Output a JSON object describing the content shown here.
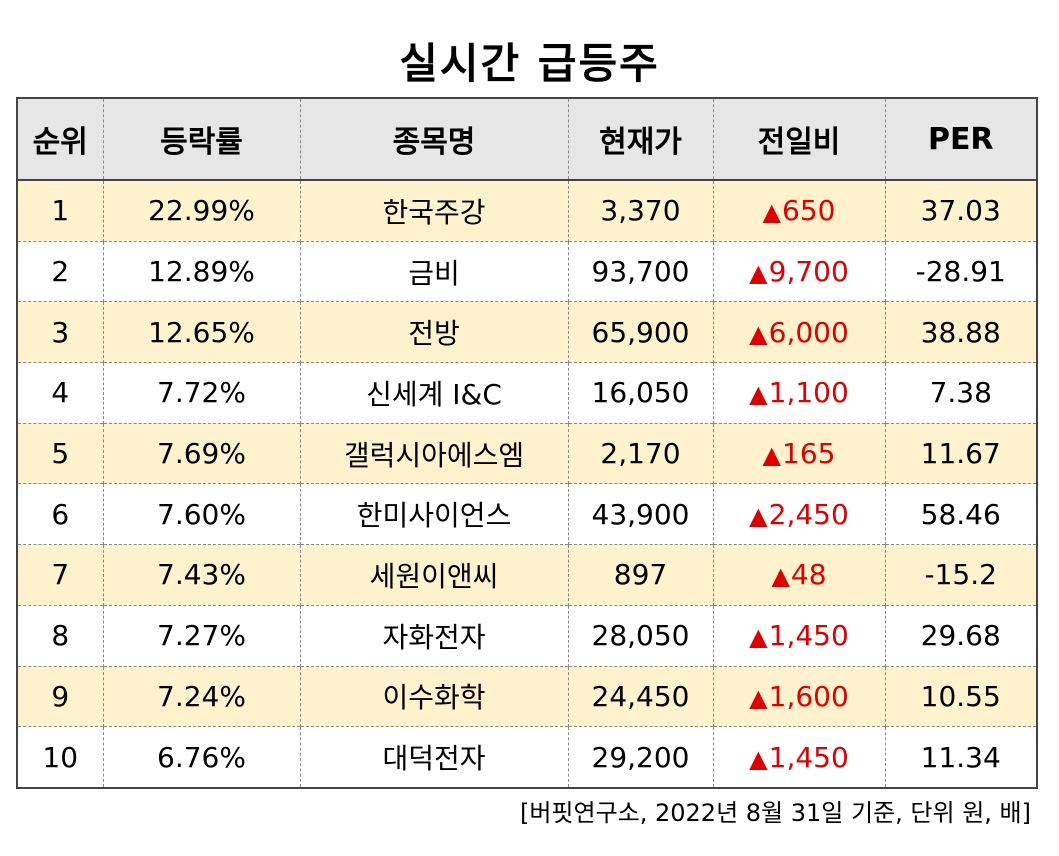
{
  "title": "실시간 급등주",
  "columns": [
    "순위",
    "등락률",
    "종목명",
    "현재가",
    "전일비",
    "PER"
  ],
  "rows": [
    {
      "rank": "1",
      "rate": "22.99%",
      "name": "한국주강",
      "price": "3,370",
      "change": "650",
      "per": "37.03"
    },
    {
      "rank": "2",
      "rate": "12.89%",
      "name": "금비",
      "price": "93,700",
      "change": "9,700",
      "per": "-28.91"
    },
    {
      "rank": "3",
      "rate": "12.65%",
      "name": "전방",
      "price": "65,900",
      "change": "6,000",
      "per": "38.88"
    },
    {
      "rank": "4",
      "rate": "7.72%",
      "name": "신세계 I&C",
      "price": "16,050",
      "change": "1,100",
      "per": "7.38"
    },
    {
      "rank": "5",
      "rate": "7.69%",
      "name": "갤럭시아에스엠",
      "price": "2,170",
      "change": "165",
      "per": "11.67"
    },
    {
      "rank": "6",
      "rate": "7.60%",
      "name": "한미사이언스",
      "price": "43,900",
      "change": "2,450",
      "per": "58.46"
    },
    {
      "rank": "7",
      "rate": "7.43%",
      "name": "세원이앤씨",
      "price": "897",
      "change": "48",
      "per": "-15.2"
    },
    {
      "rank": "8",
      "rate": "7.27%",
      "name": "자화전자",
      "price": "28,050",
      "change": "1,450",
      "per": "29.68"
    },
    {
      "rank": "9",
      "rate": "7.24%",
      "name": "이수화학",
      "price": "24,450",
      "change": "1,600",
      "per": "10.55"
    },
    {
      "rank": "10",
      "rate": "6.76%",
      "name": "대덕전자",
      "price": "29,200",
      "change": "1,450",
      "per": "11.34"
    }
  ],
  "up_marker": "▲",
  "source": "[버핏연구소, 2022년 8월 31일 기준, 단위 원, 배]",
  "colors": {
    "header_bg": "#e7e6e6",
    "odd_row_bg": "#fff2cc",
    "up": "#e00000"
  }
}
